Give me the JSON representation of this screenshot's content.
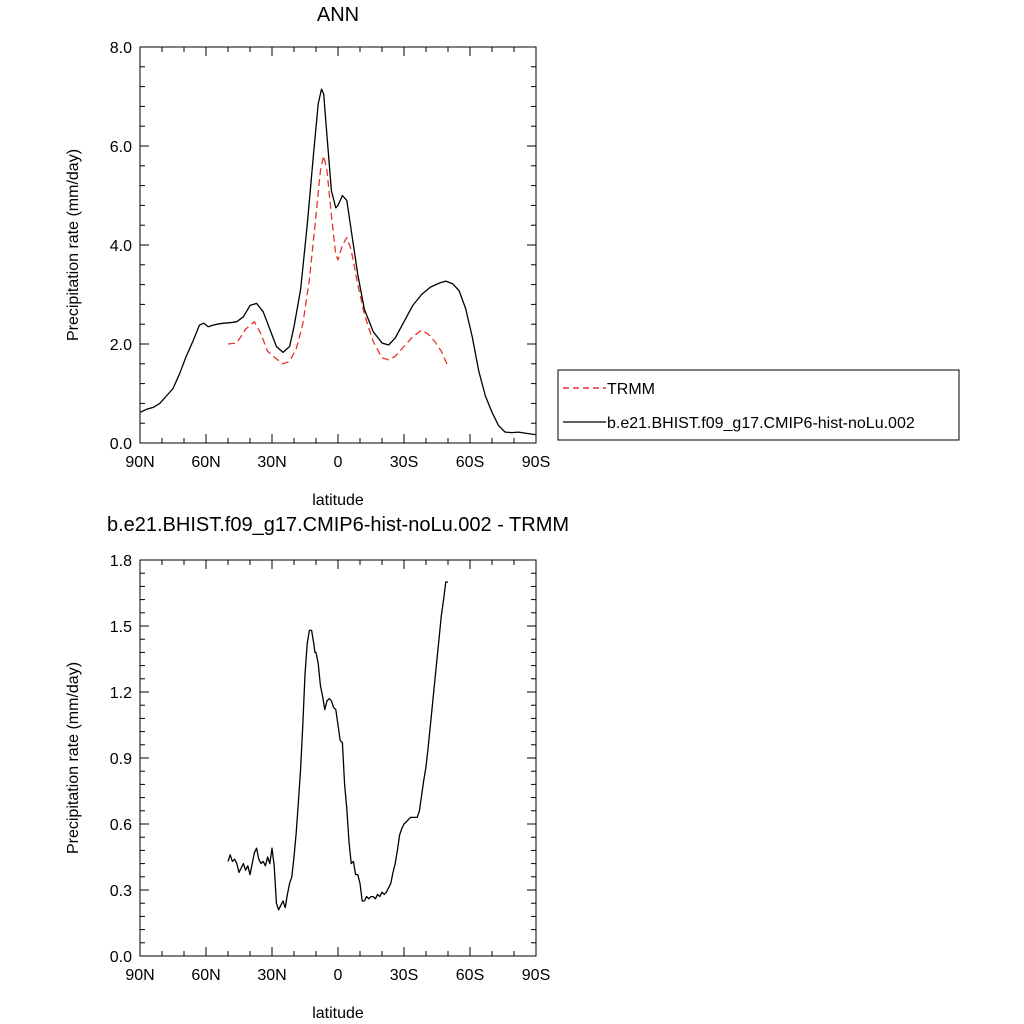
{
  "chart_data": [
    {
      "type": "line",
      "title": "ANN",
      "xlabel": "latitude",
      "ylabel": "Precipitation rate (mm/day)",
      "xlim": [
        90,
        -90
      ],
      "ylim": [
        0,
        8
      ],
      "xticks": [
        {
          "value": 90,
          "label": "90N"
        },
        {
          "value": 60,
          "label": "60N"
        },
        {
          "value": 30,
          "label": "30N"
        },
        {
          "value": 0,
          "label": "0"
        },
        {
          "value": -30,
          "label": "30S"
        },
        {
          "value": -60,
          "label": "60S"
        },
        {
          "value": -90,
          "label": "90S"
        }
      ],
      "yticks": [
        {
          "value": 0,
          "label": "0.0"
        },
        {
          "value": 2,
          "label": "2.0"
        },
        {
          "value": 4,
          "label": "4.0"
        },
        {
          "value": 6,
          "label": "6.0"
        },
        {
          "value": 8,
          "label": "8.0"
        }
      ],
      "legend_position": "right",
      "series": [
        {
          "name": "TRMM",
          "color": "#e8332b",
          "style": "dashed",
          "x": [
            50,
            46,
            42,
            38,
            35,
            32,
            28,
            25,
            22,
            19,
            16,
            13,
            10,
            8,
            6.5,
            5,
            3,
            1,
            0,
            -2,
            -4,
            -6,
            -9,
            -12,
            -16,
            -20,
            -23,
            -26,
            -30,
            -34,
            -38,
            -41,
            -44,
            -47,
            -50
          ],
          "y": [
            2.0,
            2.02,
            2.3,
            2.45,
            2.2,
            1.85,
            1.7,
            1.6,
            1.65,
            1.9,
            2.4,
            3.3,
            4.6,
            5.5,
            5.8,
            5.5,
            4.6,
            3.8,
            3.7,
            4.0,
            4.15,
            3.9,
            3.2,
            2.6,
            2.05,
            1.72,
            1.68,
            1.75,
            1.95,
            2.15,
            2.28,
            2.2,
            2.05,
            1.85,
            1.55
          ]
        },
        {
          "name": "b.e21.BHIST.f09_g17.CMIP6-hist-noLu.002",
          "color": "#000000",
          "style": "solid",
          "x": [
            90,
            87,
            84,
            81,
            78,
            75,
            72,
            69,
            66,
            63,
            61,
            59,
            57,
            55,
            52,
            49,
            46,
            43,
            40,
            37,
            34,
            31,
            28,
            25,
            22,
            20,
            17,
            14,
            11,
            9,
            7.5,
            6.5,
            5,
            3,
            1,
            0,
            -2,
            -4,
            -6,
            -9,
            -12,
            -16,
            -20,
            -23,
            -26,
            -30,
            -34,
            -38,
            -42,
            -46,
            -49,
            -52,
            -55,
            -58,
            -61,
            -64,
            -67,
            -70,
            -73,
            -76,
            -79,
            -82,
            -85,
            -88,
            -90
          ],
          "y": [
            0.62,
            0.68,
            0.72,
            0.8,
            0.95,
            1.1,
            1.4,
            1.75,
            2.05,
            2.38,
            2.42,
            2.35,
            2.38,
            2.4,
            2.42,
            2.43,
            2.45,
            2.55,
            2.78,
            2.82,
            2.65,
            2.3,
            1.95,
            1.83,
            1.95,
            2.35,
            3.1,
            4.4,
            5.9,
            6.85,
            7.15,
            7.05,
            6.2,
            5.1,
            4.75,
            4.8,
            5.0,
            4.9,
            4.3,
            3.4,
            2.7,
            2.25,
            2.02,
            1.98,
            2.12,
            2.45,
            2.78,
            3.0,
            3.15,
            3.23,
            3.27,
            3.22,
            3.08,
            2.72,
            2.15,
            1.45,
            0.95,
            0.62,
            0.35,
            0.22,
            0.21,
            0.22,
            0.2,
            0.18,
            0.17
          ]
        }
      ]
    },
    {
      "type": "line",
      "title": "b.e21.BHIST.f09_g17.CMIP6-hist-noLu.002 - TRMM",
      "xlabel": "latitude",
      "ylabel": "Precipitation rate (mm/day)",
      "xlim": [
        90,
        -90
      ],
      "ylim": [
        0,
        1.8
      ],
      "xticks": [
        {
          "value": 90,
          "label": "90N"
        },
        {
          "value": 60,
          "label": "60N"
        },
        {
          "value": 30,
          "label": "30N"
        },
        {
          "value": 0,
          "label": "0"
        },
        {
          "value": -30,
          "label": "30S"
        },
        {
          "value": -60,
          "label": "60S"
        },
        {
          "value": -90,
          "label": "90S"
        }
      ],
      "yticks": [
        {
          "value": 0,
          "label": "0.0"
        },
        {
          "value": 0.3,
          "label": "0.3"
        },
        {
          "value": 0.6,
          "label": "0.6"
        },
        {
          "value": 0.9,
          "label": "0.9"
        },
        {
          "value": 1.2,
          "label": "1.2"
        },
        {
          "value": 1.5,
          "label": "1.5"
        },
        {
          "value": 1.8,
          "label": "1.8"
        }
      ],
      "series": [
        {
          "color": "#000000",
          "style": "solid",
          "x": [
            50,
            49,
            48,
            47,
            46,
            45,
            44,
            43,
            42,
            41,
            40,
            39,
            38,
            37,
            36,
            35,
            34,
            33,
            32,
            31,
            30,
            29,
            28,
            27,
            26,
            25,
            24,
            23,
            22,
            21,
            20,
            19,
            18,
            17,
            16,
            15,
            14,
            13,
            12,
            11,
            10.5,
            10,
            9,
            8,
            7,
            6,
            5,
            4,
            3,
            2,
            1,
            0,
            -1,
            -2,
            -3,
            -4,
            -5,
            -6,
            -7,
            -8,
            -9,
            -10,
            -11,
            -12,
            -13,
            -14,
            -15,
            -16,
            -17,
            -18,
            -19,
            -20,
            -21,
            -22,
            -23,
            -24,
            -25,
            -26,
            -27,
            -28,
            -29,
            -30,
            -31,
            -32,
            -33,
            -34,
            -35,
            -36,
            -37,
            -38,
            -39,
            -40,
            -41,
            -42,
            -43,
            -44,
            -45,
            -46,
            -47,
            -48,
            -49,
            -50
          ],
          "y": [
            0.43,
            0.46,
            0.43,
            0.44,
            0.42,
            0.38,
            0.4,
            0.42,
            0.39,
            0.41,
            0.37,
            0.42,
            0.47,
            0.49,
            0.44,
            0.42,
            0.43,
            0.41,
            0.45,
            0.42,
            0.49,
            0.41,
            0.24,
            0.21,
            0.23,
            0.25,
            0.22,
            0.28,
            0.33,
            0.36,
            0.45,
            0.56,
            0.7,
            0.85,
            1.05,
            1.28,
            1.42,
            1.48,
            1.48,
            1.42,
            1.38,
            1.38,
            1.33,
            1.23,
            1.18,
            1.12,
            1.16,
            1.17,
            1.16,
            1.13,
            1.12,
            1.05,
            0.98,
            0.97,
            0.78,
            0.67,
            0.52,
            0.42,
            0.43,
            0.37,
            0.37,
            0.33,
            0.25,
            0.25,
            0.27,
            0.26,
            0.27,
            0.27,
            0.26,
            0.28,
            0.27,
            0.29,
            0.28,
            0.29,
            0.31,
            0.33,
            0.38,
            0.42,
            0.48,
            0.55,
            0.58,
            0.6,
            0.61,
            0.62,
            0.63,
            0.63,
            0.63,
            0.63,
            0.66,
            0.73,
            0.8,
            0.86,
            0.95,
            1.05,
            1.15,
            1.25,
            1.35,
            1.45,
            1.55,
            1.62,
            1.7,
            1.7
          ]
        }
      ]
    }
  ]
}
